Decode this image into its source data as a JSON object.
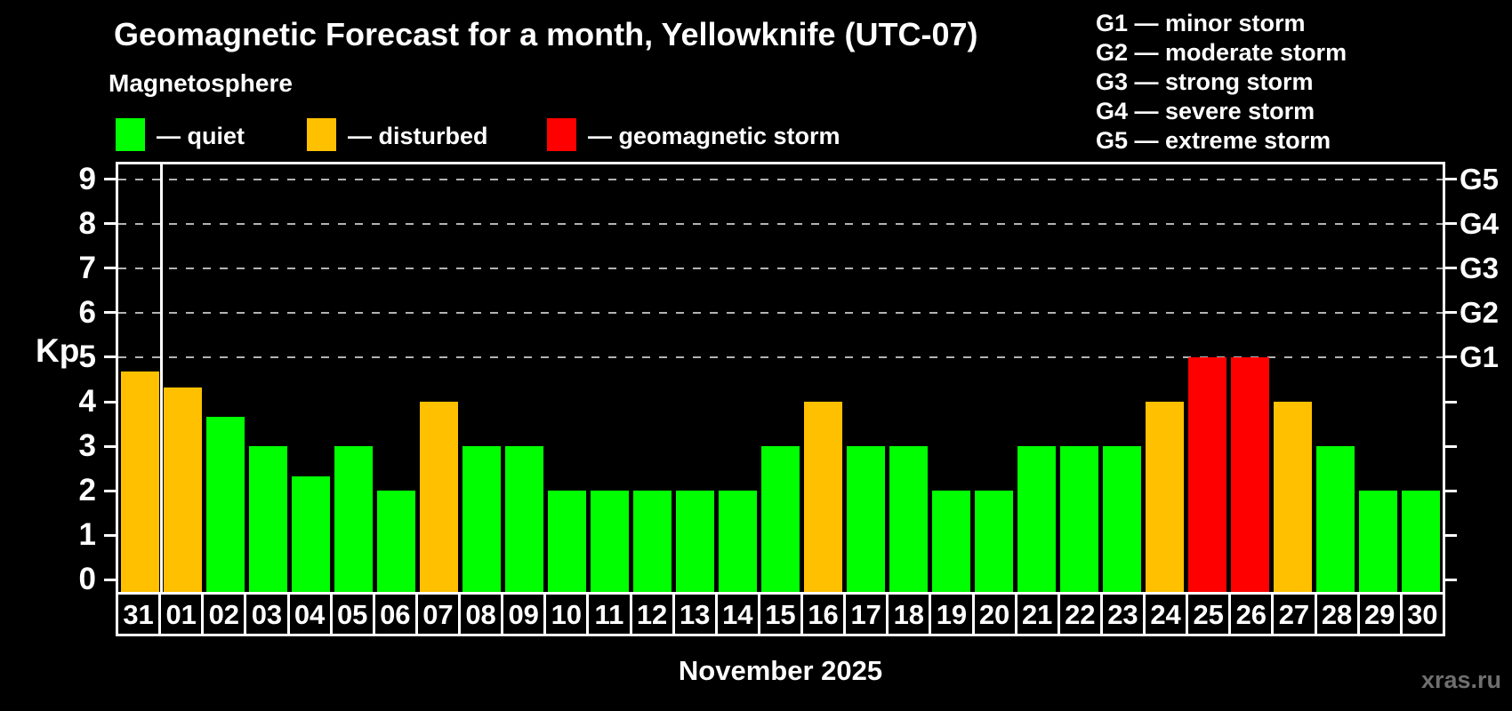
{
  "title": "Geomagnetic Forecast for a month, Yellowknife (UTC-07)",
  "subtitle": "Magnetosphere",
  "watermark": "xras.ru",
  "colors": {
    "quiet": "#00ff00",
    "disturbed": "#ffc000",
    "storm": "#ff0000",
    "grid": "#b3b3b3",
    "axis": "#ffffff",
    "background": "#000000",
    "watermark_text": "#6f6f6f"
  },
  "legend": {
    "items": [
      {
        "status": "quiet",
        "label": "— quiet"
      },
      {
        "status": "disturbed",
        "label": "— disturbed"
      },
      {
        "status": "storm",
        "label": "— geomagnetic storm"
      }
    ]
  },
  "g_legend": {
    "lines": [
      "G1 — minor storm",
      "G2 — moderate storm",
      "G3 — strong storm",
      "G4 — severe storm",
      "G5 — extreme storm"
    ]
  },
  "axes": {
    "y_label": "Kp",
    "y_ticks": [
      0,
      1,
      2,
      3,
      4,
      5,
      6,
      7,
      8,
      9
    ],
    "right_ticks": [
      0,
      1,
      2,
      3,
      4,
      5,
      6,
      7,
      8,
      9
    ],
    "g_labels": [
      {
        "kp": 5,
        "label": "G1"
      },
      {
        "kp": 6,
        "label": "G2"
      },
      {
        "kp": 7,
        "label": "G3"
      },
      {
        "kp": 8,
        "label": "G4"
      },
      {
        "kp": 9,
        "label": "G5"
      }
    ],
    "gridlines_at": [
      5,
      6,
      7,
      8,
      9
    ],
    "x_label": "November 2025"
  },
  "chart_data": {
    "type": "bar",
    "title": "Geomagnetic Forecast for a month, Yellowknife (UTC-07)",
    "ylabel": "Kp",
    "ylim": [
      0,
      9
    ],
    "drawn_y_range": [
      -0.33,
      9.33
    ],
    "grid": "horizontal dashed lines at Kp 5-9 only (G1-G5 storm levels)",
    "legend_position": "top-left",
    "month_separator_after_index": 0,
    "days": [
      {
        "day": "31",
        "kp": 4.67,
        "status": "disturbed"
      },
      {
        "day": "01",
        "kp": 4.33,
        "status": "disturbed"
      },
      {
        "day": "02",
        "kp": 3.67,
        "status": "quiet"
      },
      {
        "day": "03",
        "kp": 3,
        "status": "quiet"
      },
      {
        "day": "04",
        "kp": 2.33,
        "status": "quiet"
      },
      {
        "day": "05",
        "kp": 3,
        "status": "quiet"
      },
      {
        "day": "06",
        "kp": 2,
        "status": "quiet"
      },
      {
        "day": "07",
        "kp": 4,
        "status": "disturbed"
      },
      {
        "day": "08",
        "kp": 3,
        "status": "quiet"
      },
      {
        "day": "09",
        "kp": 3,
        "status": "quiet"
      },
      {
        "day": "10",
        "kp": 2,
        "status": "quiet"
      },
      {
        "day": "11",
        "kp": 2,
        "status": "quiet"
      },
      {
        "day": "12",
        "kp": 2,
        "status": "quiet"
      },
      {
        "day": "13",
        "kp": 2,
        "status": "quiet"
      },
      {
        "day": "14",
        "kp": 2,
        "status": "quiet"
      },
      {
        "day": "15",
        "kp": 3,
        "status": "quiet"
      },
      {
        "day": "16",
        "kp": 4,
        "status": "disturbed"
      },
      {
        "day": "17",
        "kp": 3,
        "status": "quiet"
      },
      {
        "day": "18",
        "kp": 3,
        "status": "quiet"
      },
      {
        "day": "19",
        "kp": 2,
        "status": "quiet"
      },
      {
        "day": "20",
        "kp": 2,
        "status": "quiet"
      },
      {
        "day": "21",
        "kp": 3,
        "status": "quiet"
      },
      {
        "day": "22",
        "kp": 3,
        "status": "quiet"
      },
      {
        "day": "23",
        "kp": 3,
        "status": "quiet"
      },
      {
        "day": "24",
        "kp": 4,
        "status": "disturbed"
      },
      {
        "day": "25",
        "kp": 5,
        "status": "storm"
      },
      {
        "day": "26",
        "kp": 5,
        "status": "storm"
      },
      {
        "day": "27",
        "kp": 4,
        "status": "disturbed"
      },
      {
        "day": "28",
        "kp": 3,
        "status": "quiet"
      },
      {
        "day": "29",
        "kp": 2,
        "status": "quiet"
      },
      {
        "day": "30",
        "kp": 2,
        "status": "quiet"
      }
    ]
  }
}
